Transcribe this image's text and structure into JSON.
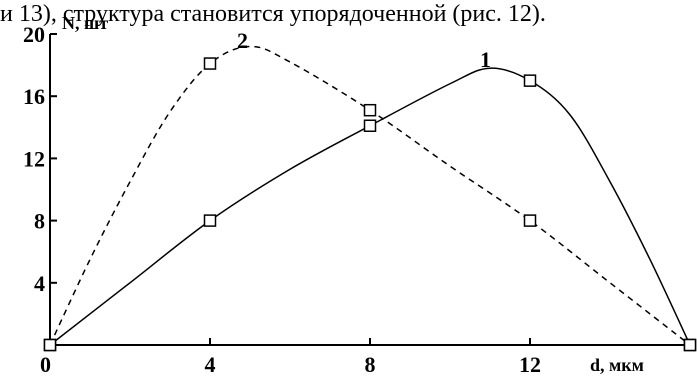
{
  "caption": "и 13), структура становится упорядоченной (рис. 12).",
  "chart_data": {
    "type": "line",
    "xlabel": "d, мкм",
    "ylabel": "N, шт",
    "xlim": [
      0,
      16
    ],
    "ylim": [
      0,
      20
    ],
    "x_ticks": [
      {
        "value": 0,
        "label": "0"
      },
      {
        "value": 4,
        "label": "4"
      },
      {
        "value": 8,
        "label": "8"
      },
      {
        "value": 12,
        "label": "12"
      }
    ],
    "y_ticks": [
      {
        "value": 4,
        "label": "4"
      },
      {
        "value": 8,
        "label": "8"
      },
      {
        "value": 12,
        "label": "12"
      },
      {
        "value": 16,
        "label": "16"
      },
      {
        "value": 20,
        "label": "20"
      }
    ],
    "grid": false,
    "series": [
      {
        "name": "1",
        "style": "solid",
        "color": "#000000",
        "markers": [
          [
            0,
            0
          ],
          [
            4,
            8
          ],
          [
            8,
            14.1
          ],
          [
            12,
            17
          ],
          [
            16,
            0
          ]
        ],
        "curve": [
          [
            0,
            0
          ],
          [
            2,
            4
          ],
          [
            4,
            8
          ],
          [
            6,
            11.3
          ],
          [
            8,
            14.1
          ],
          [
            10,
            16.8
          ],
          [
            11,
            17.8
          ],
          [
            12,
            17
          ],
          [
            13,
            14.8
          ],
          [
            14,
            10.5
          ],
          [
            15,
            5.5
          ],
          [
            16,
            0
          ]
        ]
      },
      {
        "name": "2",
        "style": "dashed",
        "color": "#000000",
        "markers": [
          [
            0,
            0
          ],
          [
            4,
            18.1
          ],
          [
            8,
            15.1
          ],
          [
            12,
            8
          ],
          [
            16,
            0
          ]
        ],
        "curve": [
          [
            0,
            0
          ],
          [
            1,
            5.5
          ],
          [
            2,
            10.5
          ],
          [
            3,
            15
          ],
          [
            4,
            18.1
          ],
          [
            5,
            19.2
          ],
          [
            6,
            18.2
          ],
          [
            8,
            15.1
          ],
          [
            10,
            11.5
          ],
          [
            12,
            8
          ],
          [
            14,
            4
          ],
          [
            16,
            0
          ]
        ]
      }
    ]
  }
}
